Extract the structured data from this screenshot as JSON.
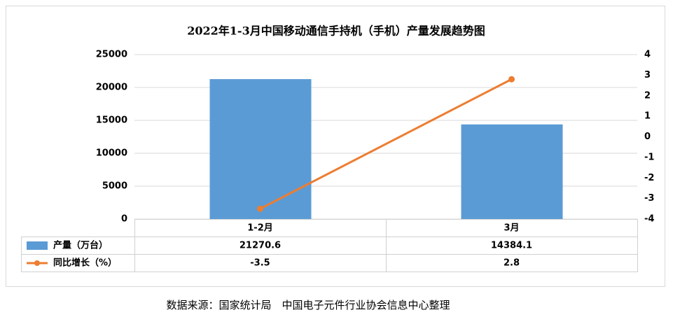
{
  "chart_data": {
    "type": "bar-line",
    "title": "2022年1-3月中国移动通信手持机（手机）产量发展趋势图",
    "categories": [
      "1-2月",
      "3月"
    ],
    "series": [
      {
        "name": "产量（万台）",
        "type": "bar",
        "color": "#5b9bd5",
        "values": [
          21270.6,
          14384.1
        ]
      },
      {
        "name": "同比增长（%）",
        "type": "line",
        "axis": "y2",
        "color": "#ed7d31",
        "values": [
          -3.5,
          2.8
        ]
      }
    ],
    "ylim": [
      0,
      25000
    ],
    "yticks": [
      0,
      5000,
      10000,
      15000,
      20000,
      25000
    ],
    "y2lim": [
      -4,
      4
    ],
    "y2ticks": [
      -4,
      -3,
      -2,
      -1,
      0,
      1,
      2,
      3,
      4
    ],
    "grid": true,
    "source": "数据来源：国家统计局　中国电子元件行业协会信息中心整理"
  }
}
